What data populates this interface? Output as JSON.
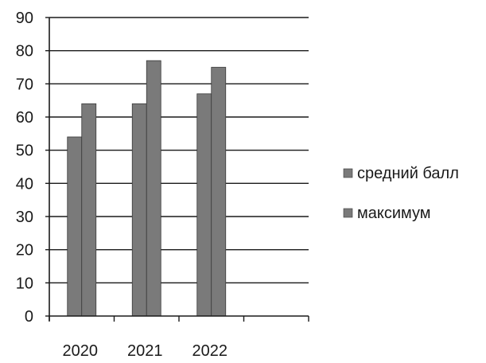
{
  "chart_data": {
    "type": "bar",
    "title": "",
    "xlabel": "",
    "ylabel": "",
    "categories": [
      "2020",
      "2021",
      "2022"
    ],
    "empty_slots_after_categories": 1,
    "series": [
      {
        "name": "средний балл",
        "values": [
          54,
          64,
          67
        ],
        "color": "#7a7a7a"
      },
      {
        "name": "максимум",
        "values": [
          64,
          77,
          75
        ],
        "color": "#7a7a7a"
      }
    ],
    "ylim": [
      0,
      90
    ],
    "yticks": [
      0,
      10,
      20,
      30,
      40,
      50,
      60,
      70,
      80,
      90
    ],
    "grid": true,
    "legend_position": "right"
  }
}
